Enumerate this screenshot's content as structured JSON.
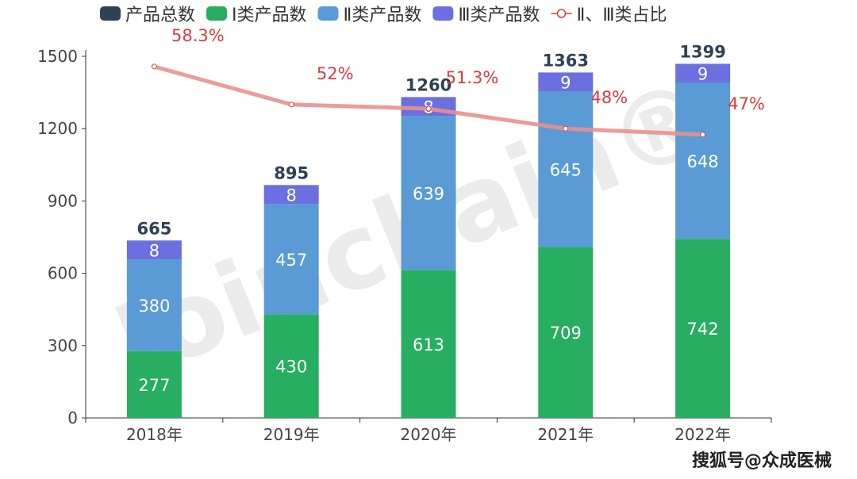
{
  "chart_data": {
    "type": "bar",
    "stacked": true,
    "categories": [
      "2018年",
      "2019年",
      "2020年",
      "2021年",
      "2022年"
    ],
    "series": [
      {
        "name": "Ⅰ类产品数",
        "values": [
          277,
          430,
          613,
          709,
          742
        ],
        "color": "#27ae60"
      },
      {
        "name": "Ⅱ类产品数",
        "values": [
          380,
          457,
          639,
          645,
          648
        ],
        "color": "#5b9bd5"
      },
      {
        "name": "Ⅲ类产品数",
        "values": [
          8,
          8,
          8,
          9,
          9
        ],
        "color": "#6b6fe0"
      }
    ],
    "totals": {
      "name": "产品总数",
      "values": [
        665,
        895,
        1260,
        1363,
        1399
      ],
      "color": "#2f4154"
    },
    "line": {
      "name": "Ⅱ、Ⅲ类占比",
      "values": [
        58.3,
        52,
        51.3,
        48,
        47
      ],
      "labels": [
        "58.3%",
        "52%",
        "51.3%",
        "48%",
        "47%"
      ],
      "color": "#e8908f",
      "label_color": "#e0393e",
      "secondary_axis_visible": false,
      "ylim": [
        0,
        60
      ]
    },
    "yticks": [
      "0",
      "300",
      "600",
      "900",
      "1200",
      "1500"
    ],
    "ylim": [
      0,
      1500
    ],
    "grid": false,
    "legend_position": "top-center",
    "watermark": "Joinchain®"
  },
  "footer": {
    "source": "搜狐号@众成医械"
  }
}
